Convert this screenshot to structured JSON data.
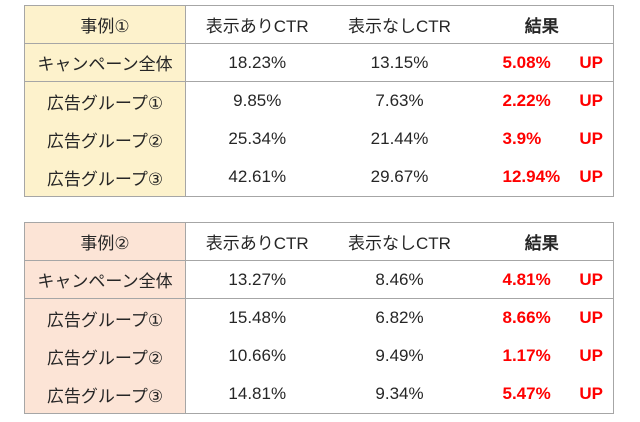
{
  "colors": {
    "accent_case1": "#FDF2CC",
    "accent_case2": "#FCE4D6",
    "border": "#A6A6A6",
    "text": "#262626",
    "result_red": "#FF0000",
    "background": "#FFFFFF"
  },
  "chart_data": [
    {
      "type": "table",
      "title": "事例①",
      "columns": [
        "事例①",
        "表示ありCTR",
        "表示なしCTR",
        "結果"
      ],
      "rows": [
        [
          "キャンペーン全体",
          "18.23%",
          "13.15%",
          "5.08%",
          "UP"
        ],
        [
          "広告グループ①",
          "9.85%",
          "7.63%",
          "2.22%",
          "UP"
        ],
        [
          "広告グループ②",
          "25.34%",
          "21.44%",
          "3.9%",
          "UP"
        ],
        [
          "広告グループ③",
          "42.61%",
          "29.67%",
          "12.94%",
          "UP"
        ]
      ]
    },
    {
      "type": "table",
      "title": "事例②",
      "columns": [
        "事例②",
        "表示ありCTR",
        "表示なしCTR",
        "結果"
      ],
      "rows": [
        [
          "キャンペーン全体",
          "13.27%",
          "8.46%",
          "4.81%",
          "UP"
        ],
        [
          "広告グループ①",
          "15.48%",
          "6.82%",
          "8.66%",
          "UP"
        ],
        [
          "広告グループ②",
          "10.66%",
          "9.49%",
          "1.17%",
          "UP"
        ],
        [
          "広告グループ③",
          "14.81%",
          "9.34%",
          "5.47%",
          "UP"
        ]
      ]
    }
  ]
}
